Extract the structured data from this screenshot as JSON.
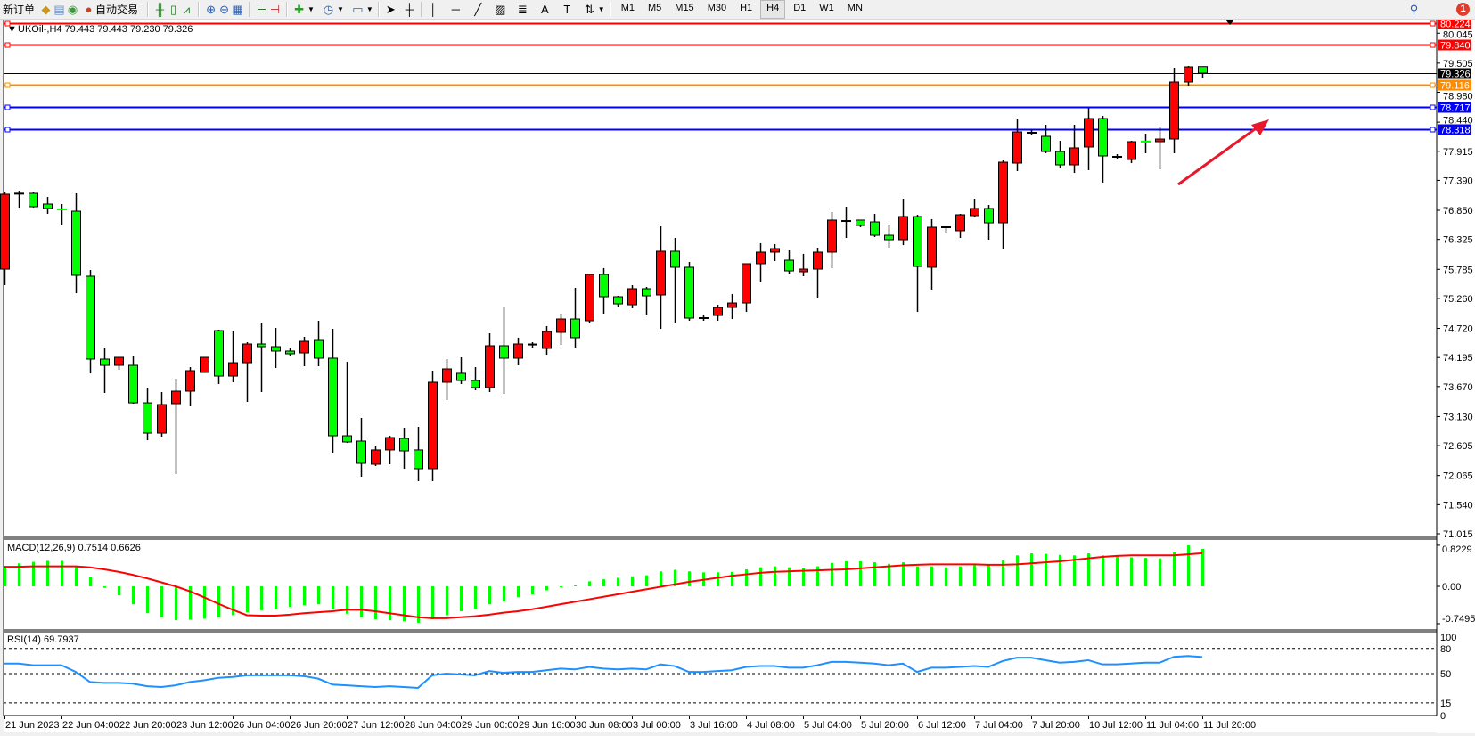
{
  "toolbar": {
    "new_order": "新订单",
    "auto_trading": "自动交易",
    "timeframes": [
      "M1",
      "M5",
      "M15",
      "M30",
      "H1",
      "H4",
      "D1",
      "W1",
      "MN"
    ],
    "active_timeframe": "H4",
    "notification_count": "1"
  },
  "chart": {
    "header": "UKOil-,H4  79.443 79.443 79.230 79.326",
    "colors": {
      "bull": "#ff0000",
      "bear": "#00ff00",
      "wick": "#000000",
      "macd_hist": "#00ff00",
      "macd_signal": "#ff0000",
      "rsi": "#1e90ff",
      "arrow": "#e8182a"
    },
    "price_ticks": [
      "80.045",
      "79.505",
      "78.980",
      "78.440",
      "77.915",
      "77.390",
      "76.850",
      "76.325",
      "75.785",
      "75.260",
      "74.720",
      "74.195",
      "73.670",
      "73.130",
      "72.605",
      "72.065",
      "71.540",
      "71.015"
    ],
    "levels": [
      {
        "value": "80.224",
        "color": "#ff0000"
      },
      {
        "value": "79.840",
        "color": "#ff0000"
      },
      {
        "value": "79.326",
        "color": "#000000"
      },
      {
        "value": "79.116",
        "color": "#ff8c00"
      },
      {
        "value": "78.717",
        "color": "#0000ff"
      },
      {
        "value": "78.318",
        "color": "#0000ff"
      }
    ],
    "time_labels": [
      "21 Jun 2023",
      "22 Jun 04:00",
      "22 Jun 20:00",
      "23 Jun 12:00",
      "26 Jun 04:00",
      "26 Jun 20:00",
      "27 Jun 12:00",
      "28 Jun 04:00",
      "29 Jun 00:00",
      "29 Jun 16:00",
      "30 Jun 08:00",
      "3 Jul 00:00",
      "3 Jul 16:00",
      "4 Jul 08:00",
      "5 Jul 04:00",
      "5 Jul 20:00",
      "6 Jul 12:00",
      "7 Jul 04:00",
      "7 Jul 20:00",
      "10 Jul 12:00",
      "11 Jul 04:00",
      "11 Jul 20:00"
    ],
    "trend_arrow": {
      "direction": "up-right"
    }
  },
  "chart_data": {
    "type": "candlestick",
    "symbol": "UKOil-",
    "timeframe": "H4",
    "ylim": [
      71.015,
      80.224
    ],
    "ohlc": [
      [
        75.789,
        77.172,
        75.5,
        77.14
      ],
      [
        77.14,
        77.204,
        76.898,
        77.15
      ],
      [
        77.156,
        77.172,
        76.9,
        76.915
      ],
      [
        76.963,
        77.091,
        76.786,
        76.883
      ],
      [
        76.866,
        76.963,
        76.593,
        76.834
      ],
      [
        76.834,
        77.156,
        75.355,
        75.677
      ],
      [
        75.661,
        75.773,
        73.908,
        74.166
      ],
      [
        74.166,
        74.359,
        73.555,
        74.053
      ],
      [
        74.053,
        74.198,
        73.973,
        74.198
      ],
      [
        74.053,
        74.214,
        73.362,
        73.377
      ],
      [
        73.377,
        73.635,
        72.703,
        72.831
      ],
      [
        72.831,
        73.571,
        72.767,
        73.346
      ],
      [
        73.362,
        73.812,
        72.092,
        73.587
      ],
      [
        73.587,
        74.021,
        73.314,
        73.957
      ],
      [
        73.925,
        74.198,
        73.925,
        74.198
      ],
      [
        74.68,
        74.696,
        73.716,
        73.86
      ],
      [
        73.86,
        74.68,
        73.748,
        74.101
      ],
      [
        74.101,
        74.471,
        73.394,
        74.439
      ],
      [
        74.439,
        74.809,
        73.571,
        74.391
      ],
      [
        74.391,
        74.728,
        74.005,
        74.311
      ],
      [
        74.311,
        74.375,
        74.23,
        74.262
      ],
      [
        74.278,
        74.568,
        74.037,
        74.487
      ],
      [
        74.503,
        74.857,
        74.037,
        74.182
      ],
      [
        74.182,
        74.712,
        72.478,
        72.783
      ],
      [
        72.783,
        74.117,
        72.655,
        72.671
      ],
      [
        72.687,
        73.105,
        72.044,
        72.285
      ],
      [
        72.269,
        72.591,
        72.237,
        72.527
      ],
      [
        72.527,
        72.783,
        72.269,
        72.751
      ],
      [
        72.735,
        72.928,
        72.189,
        72.51
      ],
      [
        72.527,
        72.944,
        71.964,
        72.189
      ],
      [
        72.189,
        73.957,
        71.964,
        73.748
      ],
      [
        73.748,
        74.166,
        73.426,
        73.989
      ],
      [
        73.909,
        74.198,
        73.716,
        73.78
      ],
      [
        73.78,
        74.021,
        73.603,
        73.651
      ],
      [
        73.651,
        74.632,
        73.571,
        74.407
      ],
      [
        74.407,
        75.114,
        73.539,
        74.182
      ],
      [
        74.182,
        74.552,
        74.053,
        74.439
      ],
      [
        74.42,
        74.471,
        74.375,
        74.43
      ],
      [
        74.359,
        74.761,
        74.246,
        74.664
      ],
      [
        74.648,
        74.986,
        74.423,
        74.889
      ],
      [
        74.889,
        75.452,
        74.375,
        74.552
      ],
      [
        74.857,
        75.709,
        74.825,
        75.693
      ],
      [
        75.693,
        75.806,
        74.986,
        75.291
      ],
      [
        75.291,
        75.307,
        75.114,
        75.162
      ],
      [
        75.146,
        75.5,
        75.082,
        75.436
      ],
      [
        75.436,
        75.468,
        74.97,
        75.307
      ],
      [
        75.323,
        76.561,
        74.712,
        76.111
      ],
      [
        76.111,
        76.352,
        74.825,
        75.822
      ],
      [
        75.822,
        75.918,
        74.857,
        74.905
      ],
      [
        74.905,
        74.97,
        74.857,
        74.905
      ],
      [
        74.953,
        75.146,
        74.857,
        75.098
      ],
      [
        75.098,
        75.339,
        74.889,
        75.178
      ],
      [
        75.178,
        75.886,
        75.018,
        75.886
      ],
      [
        75.886,
        76.256,
        75.564,
        76.095
      ],
      [
        76.095,
        76.24,
        75.934,
        76.159
      ],
      [
        75.95,
        76.127,
        75.693,
        75.757
      ],
      [
        75.741,
        76.063,
        75.661,
        75.789
      ],
      [
        75.789,
        76.175,
        75.259,
        76.095
      ],
      [
        76.095,
        76.818,
        75.805,
        76.674
      ],
      [
        76.657,
        76.915,
        76.352,
        76.657
      ],
      [
        76.674,
        76.674,
        76.545,
        76.577
      ],
      [
        76.641,
        76.786,
        76.368,
        76.4
      ],
      [
        76.4,
        76.577,
        76.175,
        76.32
      ],
      [
        76.32,
        77.059,
        76.223,
        76.738
      ],
      [
        76.738,
        76.77,
        75.018,
        75.837
      ],
      [
        75.822,
        76.69,
        75.42,
        76.545
      ],
      [
        76.545,
        76.561,
        76.448,
        76.545
      ],
      [
        76.481,
        76.786,
        76.352,
        76.77
      ],
      [
        76.754,
        77.059,
        76.738,
        76.883
      ],
      [
        76.883,
        76.947,
        76.32,
        76.625
      ],
      [
        76.625,
        77.75,
        76.143,
        77.718
      ],
      [
        77.702,
        78.506,
        77.558,
        78.265
      ],
      [
        78.249,
        78.297,
        78.217,
        78.249
      ],
      [
        78.185,
        78.394,
        77.879,
        77.911
      ],
      [
        77.911,
        78.104,
        77.622,
        77.67
      ],
      [
        77.67,
        78.394,
        77.525,
        77.976
      ],
      [
        77.992,
        78.699,
        77.574,
        78.506
      ],
      [
        78.506,
        78.554,
        77.349,
        77.831
      ],
      [
        77.815,
        77.863,
        77.783,
        77.815
      ],
      [
        77.767,
        78.104,
        77.702,
        78.088
      ],
      [
        78.09,
        78.233,
        77.879,
        78.088
      ],
      [
        78.088,
        78.361,
        77.59,
        78.136
      ],
      [
        78.136,
        79.422,
        77.879,
        79.165
      ],
      [
        79.165,
        79.454,
        79.085,
        79.438
      ],
      [
        79.443,
        79.443,
        79.23,
        79.326
      ]
    ],
    "macd": {
      "label": "MACD(12,26,9) 0.7514 0.6626",
      "ticks": [
        "0.8229",
        "0.00",
        "-0.7495"
      ],
      "ylim": [
        -0.7495,
        0.8229
      ],
      "histogram": [
        0.4,
        0.46,
        0.49,
        0.51,
        0.51,
        0.39,
        0.18,
        -0.03,
        -0.18,
        -0.36,
        -0.54,
        -0.62,
        -0.68,
        -0.67,
        -0.65,
        -0.62,
        -0.58,
        -0.52,
        -0.48,
        -0.45,
        -0.41,
        -0.38,
        -0.36,
        -0.46,
        -0.55,
        -0.62,
        -0.66,
        -0.68,
        -0.7,
        -0.73,
        -0.66,
        -0.58,
        -0.5,
        -0.45,
        -0.36,
        -0.3,
        -0.22,
        -0.16,
        -0.08,
        -0.02,
        0.02,
        0.1,
        0.14,
        0.17,
        0.2,
        0.22,
        0.3,
        0.33,
        0.3,
        0.28,
        0.28,
        0.29,
        0.34,
        0.38,
        0.4,
        0.38,
        0.37,
        0.4,
        0.47,
        0.5,
        0.5,
        0.48,
        0.45,
        0.48,
        0.4,
        0.4,
        0.38,
        0.4,
        0.42,
        0.42,
        0.52,
        0.62,
        0.66,
        0.65,
        0.63,
        0.62,
        0.66,
        0.62,
        0.6,
        0.58,
        0.57,
        0.56,
        0.68,
        0.82,
        0.7514
      ],
      "signal": [
        0.39,
        0.39,
        0.4,
        0.4,
        0.4,
        0.4,
        0.38,
        0.34,
        0.29,
        0.23,
        0.16,
        0.08,
        0.0,
        -0.1,
        -0.22,
        -0.35,
        -0.47,
        -0.58,
        -0.59,
        -0.59,
        -0.57,
        -0.54,
        -0.52,
        -0.5,
        -0.47,
        -0.47,
        -0.5,
        -0.54,
        -0.58,
        -0.62,
        -0.64,
        -0.64,
        -0.62,
        -0.6,
        -0.57,
        -0.53,
        -0.5,
        -0.46,
        -0.41,
        -0.36,
        -0.31,
        -0.26,
        -0.21,
        -0.16,
        -0.11,
        -0.06,
        -0.01,
        0.04,
        0.09,
        0.13,
        0.17,
        0.21,
        0.24,
        0.27,
        0.29,
        0.3,
        0.31,
        0.32,
        0.33,
        0.34,
        0.36,
        0.38,
        0.4,
        0.42,
        0.43,
        0.44,
        0.44,
        0.44,
        0.44,
        0.43,
        0.43,
        0.44,
        0.46,
        0.48,
        0.5,
        0.53,
        0.56,
        0.59,
        0.61,
        0.62,
        0.62,
        0.62,
        0.62,
        0.64,
        0.6626
      ]
    },
    "rsi": {
      "label": "RSI(14) 69.7937",
      "ticks": [
        "100",
        "80",
        "50",
        "15",
        "0"
      ],
      "levels": [
        80,
        50,
        15
      ],
      "values": [
        62,
        62,
        60,
        60,
        60,
        52,
        40,
        39,
        39,
        38,
        35,
        34,
        36,
        40,
        42,
        45,
        46,
        48,
        48,
        48,
        48,
        47,
        44,
        37,
        36,
        35,
        34,
        35,
        34,
        33,
        48,
        50,
        49,
        48,
        53,
        51,
        52,
        52,
        54,
        56,
        55,
        58,
        56,
        55,
        56,
        55,
        61,
        59,
        52,
        52,
        53,
        54,
        58,
        59,
        59,
        57,
        57,
        60,
        64,
        64,
        63,
        62,
        60,
        62,
        52,
        57,
        57,
        58,
        59,
        58,
        65,
        69,
        69,
        66,
        63,
        64,
        66,
        61,
        61,
        62,
        63,
        63,
        70,
        71,
        69.79
      ]
    }
  }
}
